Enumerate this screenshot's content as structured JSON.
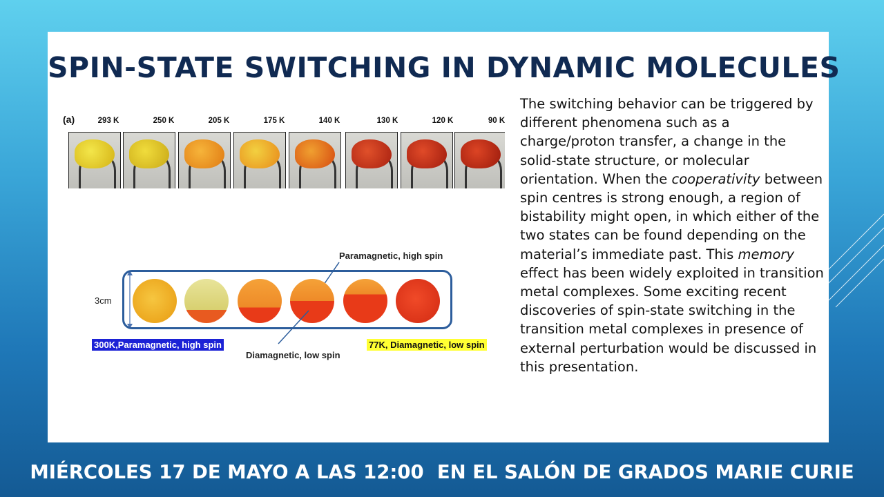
{
  "title": "SPIN-STATE SWITCHING IN DYNAMIC MOLECULES",
  "body_parts": {
    "p1": "The switching behavior can be triggered by different phenomena such as a charge/proton transfer, a change in the solid-state structure, or molecular orientation. When the ",
    "em1": "cooperativity",
    "p2": " between spin centres is strong enough, a region of bistability might open, in which either of the two states can be found depending on the material’s immediate past. This ",
    "em2": "memory",
    "p3": " effect has been widely exploited in transition metal complexes. Some exciting recent discoveries of spin-state switching in the transition metal complexes in presence of external perturbation would be discussed in this presentation."
  },
  "footer": "MIÉRCOLES 17 DE MAYO A LAS 12:00  EN EL SALÓN DE GRADOS MARIE CURIE",
  "figure_top": {
    "panel_label": "(a)",
    "temperatures": [
      "293 K",
      "250 K",
      "205 K",
      "175 K",
      "140 K",
      "130 K",
      "120 K",
      "90 K"
    ]
  },
  "figure_bottom": {
    "dimension_label": "3cm",
    "label_high": "Paramagnetic, high spin",
    "label_low": "Diamagnetic, low spin",
    "legend_left": "300K,Paramagnetic, high spin",
    "legend_right": "77K, Diamagnetic, low spin"
  },
  "colors": {
    "title": "#102a52",
    "panel_border": "#2c5d9c",
    "highlight_blue": "#1c22d6",
    "highlight_yellow": "#ffff33"
  }
}
